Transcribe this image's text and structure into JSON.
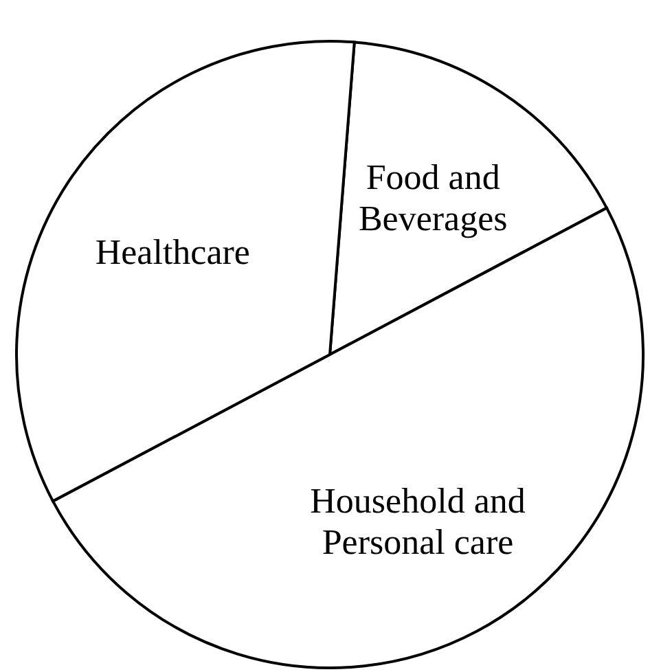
{
  "chart_data": {
    "type": "pie",
    "categories": [
      "Food and Beverages",
      "Household and Personal care",
      "Healthcare"
    ],
    "values": [
      16,
      50,
      34
    ],
    "colors": [
      "#ffffff",
      "#ffffff",
      "#ffffff"
    ]
  }
}
